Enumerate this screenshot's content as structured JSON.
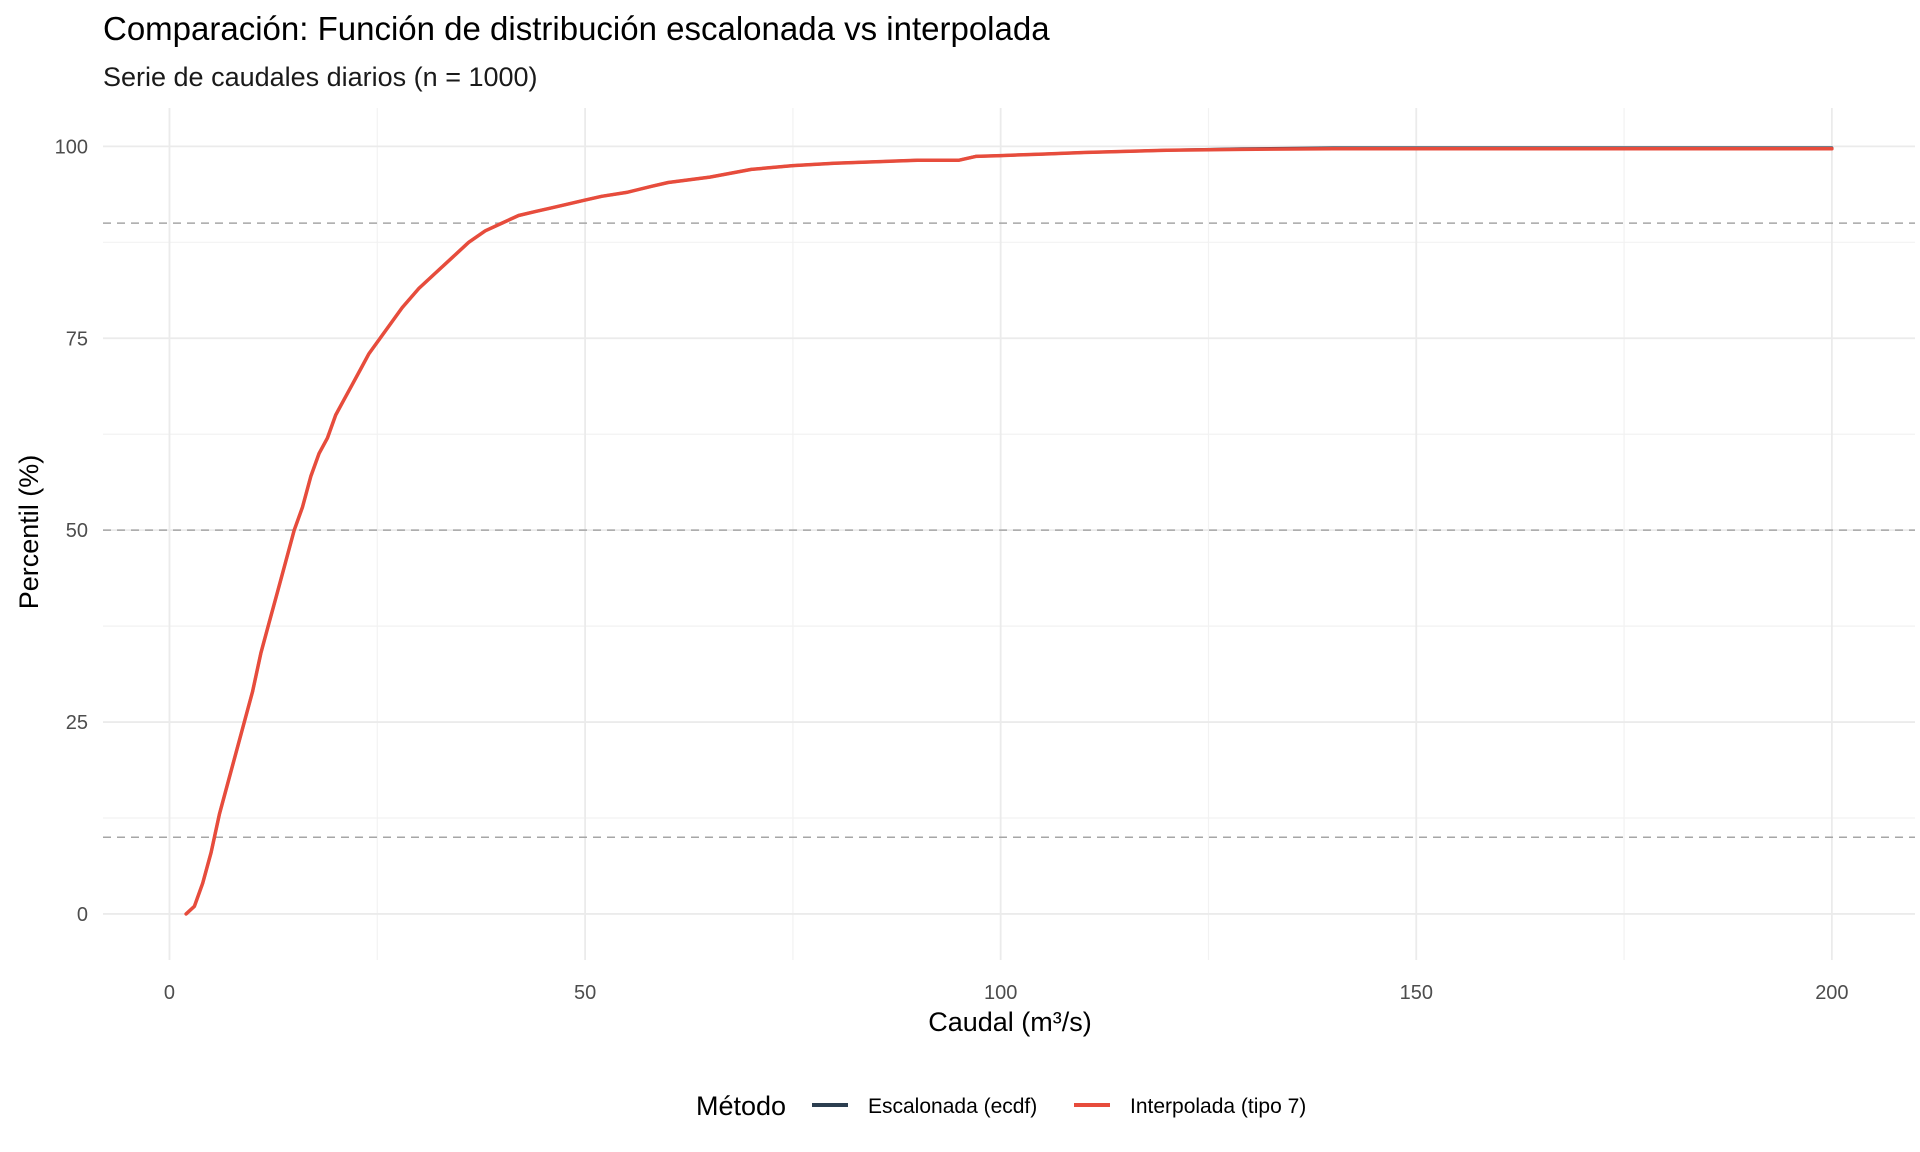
{
  "chart_data": {
    "type": "line",
    "title": "Comparación: Función de distribución escalonada vs interpolada",
    "subtitle": "Serie de caudales diarios (n = 1000)",
    "xlabel": "Caudal (m³/s)",
    "ylabel": "Percentil (%)",
    "xlim": [
      -8,
      210
    ],
    "ylim": [
      -6,
      105
    ],
    "x_ticks": [
      0,
      50,
      100,
      150,
      200
    ],
    "x_tick_labels": [
      "0",
      "50",
      "100",
      "150",
      "200"
    ],
    "y_ticks": [
      0,
      25,
      50,
      75,
      100
    ],
    "y_tick_labels": [
      "0",
      "25",
      "50",
      "75",
      "100"
    ],
    "grid": true,
    "reference_lines_y": [
      10,
      50,
      90
    ],
    "legend": {
      "title": "Método",
      "position": "bottom",
      "entries": [
        "Escalonada (ecdf)",
        "Interpolada (tipo 7)"
      ]
    },
    "series": [
      {
        "name": "Escalonada (ecdf)",
        "color": "#2c3e50",
        "x": [
          2,
          3,
          4,
          5,
          6,
          7,
          8,
          9,
          10,
          11,
          12,
          13,
          14,
          15,
          16,
          17,
          18,
          19,
          20,
          21,
          22,
          23,
          24,
          25,
          26,
          28,
          30,
          32,
          34,
          36,
          38,
          40,
          42,
          44,
          46,
          48,
          50,
          52,
          55,
          58,
          60,
          65,
          70,
          75,
          80,
          85,
          90,
          95,
          97,
          100,
          105,
          110,
          120,
          129,
          140,
          150,
          165,
          180,
          200
        ],
        "y": [
          0,
          1,
          4,
          8,
          13,
          17,
          21,
          25,
          29,
          34,
          38,
          42,
          46,
          50,
          53,
          57,
          60,
          62,
          65,
          67,
          69,
          71,
          73,
          74.5,
          76,
          79,
          81.5,
          83.5,
          85.5,
          87.5,
          89,
          90,
          91,
          91.5,
          92,
          92.5,
          93,
          93.5,
          94,
          94.8,
          95.3,
          96,
          97,
          97.5,
          97.8,
          98,
          98.2,
          98.2,
          98.7,
          98.8,
          99,
          99.2,
          99.5,
          99.7,
          99.8,
          99.8,
          99.8,
          99.8,
          99.8
        ]
      },
      {
        "name": "Interpolada (tipo 7)",
        "color": "#e74c3c",
        "x": [
          2,
          3,
          4,
          5,
          6,
          7,
          8,
          9,
          10,
          11,
          12,
          13,
          14,
          15,
          16,
          17,
          18,
          19,
          20,
          21,
          22,
          23,
          24,
          25,
          26,
          28,
          30,
          32,
          34,
          36,
          38,
          40,
          42,
          44,
          46,
          48,
          50,
          52,
          55,
          58,
          60,
          65,
          70,
          75,
          80,
          85,
          90,
          95,
          97,
          100,
          105,
          110,
          120,
          129,
          140,
          150,
          165,
          180,
          200
        ],
        "y": [
          0,
          1,
          4,
          8,
          13,
          17,
          21,
          25,
          29,
          34,
          38,
          42,
          46,
          50,
          53,
          57,
          60,
          62,
          65,
          67,
          69,
          71,
          73,
          74.5,
          76,
          79,
          81.5,
          83.5,
          85.5,
          87.5,
          89,
          90,
          91,
          91.5,
          92,
          92.5,
          93,
          93.5,
          94,
          94.8,
          95.3,
          96,
          97,
          97.5,
          97.8,
          98,
          98.2,
          98.2,
          98.7,
          98.8,
          99,
          99.2,
          99.5,
          99.6,
          99.7,
          99.7,
          99.7,
          99.7,
          99.7
        ]
      }
    ]
  }
}
